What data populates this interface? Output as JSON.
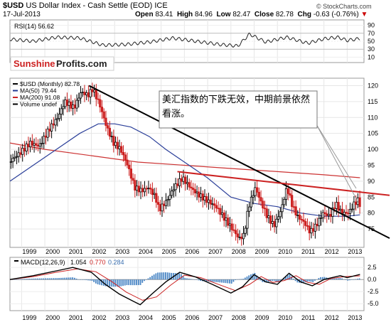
{
  "header": {
    "symbol": "$USD",
    "name": "US Dollar Index - Cash Settle (EOD)",
    "exchange": "ICE",
    "watermark": "© StockCharts.com",
    "date": "17-Jul-2013",
    "open_label": "Open",
    "open": "83.41",
    "high_label": "High",
    "high": "84.96",
    "low_label": "Low",
    "low": "82.47",
    "close_label": "Close",
    "close": "82.78",
    "chg_label": "Chg",
    "chg": "-0.63 (-0.76%)",
    "chg_marker": "▼"
  },
  "logo": {
    "part1": "Sunshine",
    "part2": "Profits.com"
  },
  "rsi_panel": {
    "legend": "RSI(14) 56.62",
    "ticks": [
      "90",
      "70",
      "50",
      "30",
      "10"
    ]
  },
  "price_panel": {
    "legend": [
      {
        "text": "$USD (Monthly) 82.78",
        "color": "#000000"
      },
      {
        "text": "MA(50) 79.44",
        "color": "#1f3a93"
      },
      {
        "text": "MA(200) 91.08",
        "color": "#cc2222"
      },
      {
        "text": "Volume undef",
        "color": "#000000"
      }
    ],
    "y_ticks": [
      "120",
      "115",
      "110",
      "105",
      "100",
      "95",
      "90",
      "85",
      "80",
      "75"
    ],
    "annotation": "美汇指数的下跌无效，中期前景依然看涨。"
  },
  "macd_panel": {
    "legend_label": "MACD(12,26,9)",
    "macd_value": "1.054",
    "signal_value": "0.770",
    "hist_value": "0.284",
    "y_ticks": [
      "2.5",
      "0.0",
      "-2.5",
      "-5.0"
    ]
  },
  "x_axis": {
    "labels": [
      "1999",
      "2000",
      "2001",
      "2002",
      "2003",
      "2004",
      "2005",
      "2006",
      "2007",
      "2008",
      "2009",
      "2010",
      "2011",
      "2012",
      "2013"
    ]
  },
  "chart_data": {
    "type": "candlestick",
    "title": "$USD US Dollar Index - Cash Settle (EOD) ICE",
    "x_range": [
      1998.5,
      2013.6
    ],
    "y_range": [
      71,
      121
    ],
    "price_points": [
      [
        1998.5,
        96
      ],
      [
        1999.0,
        99
      ],
      [
        1999.4,
        102
      ],
      [
        1999.8,
        101
      ],
      [
        2000.2,
        106
      ],
      [
        2000.6,
        110
      ],
      [
        2000.9,
        115
      ],
      [
        2001.3,
        113
      ],
      [
        2001.6,
        118
      ],
      [
        2001.9,
        117
      ],
      [
        2002.1,
        119
      ],
      [
        2002.4,
        114
      ],
      [
        2002.7,
        107
      ],
      [
        2003.0,
        102
      ],
      [
        2003.3,
        100
      ],
      [
        2003.6,
        95
      ],
      [
        2003.9,
        88
      ],
      [
        2004.2,
        87
      ],
      [
        2004.5,
        88
      ],
      [
        2004.8,
        85
      ],
      [
        2004.95,
        81
      ],
      [
        2005.3,
        84
      ],
      [
        2005.6,
        88
      ],
      [
        2005.95,
        91
      ],
      [
        2006.3,
        88
      ],
      [
        2006.6,
        86
      ],
      [
        2007.0,
        84
      ],
      [
        2007.4,
        82
      ],
      [
        2007.8,
        78
      ],
      [
        2008.2,
        74
      ],
      [
        2008.4,
        72
      ],
      [
        2008.6,
        73
      ],
      [
        2008.8,
        82
      ],
      [
        2009.1,
        88
      ],
      [
        2009.3,
        84
      ],
      [
        2009.6,
        79
      ],
      [
        2009.9,
        76
      ],
      [
        2010.2,
        81
      ],
      [
        2010.45,
        88
      ],
      [
        2010.7,
        82
      ],
      [
        2010.9,
        79
      ],
      [
        2011.2,
        77
      ],
      [
        2011.45,
        74
      ],
      [
        2011.7,
        76
      ],
      [
        2012.0,
        80
      ],
      [
        2012.3,
        79
      ],
      [
        2012.55,
        83
      ],
      [
        2012.8,
        80
      ],
      [
        2013.1,
        80
      ],
      [
        2013.35,
        83
      ],
      [
        2013.5,
        84
      ],
      [
        2013.55,
        82.78
      ]
    ],
    "ma50_points": [
      [
        1998.5,
        90
      ],
      [
        1999.5,
        95
      ],
      [
        2000.5,
        100
      ],
      [
        2001.5,
        105
      ],
      [
        2002.3,
        108
      ],
      [
        2003.0,
        108
      ],
      [
        2003.7,
        107
      ],
      [
        2004.5,
        104
      ],
      [
        2005.2,
        100
      ],
      [
        2006.0,
        96
      ],
      [
        2007.0,
        91
      ],
      [
        2008.0,
        85
      ],
      [
        2009.0,
        83
      ],
      [
        2010.0,
        82
      ],
      [
        2011.0,
        80
      ],
      [
        2012.0,
        79
      ],
      [
        2013.0,
        79
      ],
      [
        2013.55,
        79.44
      ]
    ],
    "ma200_points": [
      [
        1998.5,
        102
      ],
      [
        2000.0,
        100
      ],
      [
        2002.0,
        98
      ],
      [
        2004.0,
        96
      ],
      [
        2006.0,
        95
      ],
      [
        2008.0,
        94
      ],
      [
        2010.0,
        93
      ],
      [
        2012.0,
        92
      ],
      [
        2013.55,
        91.08
      ]
    ],
    "resistance_lines": [
      {
        "from": [
          2001.9,
          120
        ],
        "to": [
          2013.6,
          77
        ],
        "color": "#000000"
      },
      {
        "from": [
          2005.7,
          93
        ],
        "to": [
          2013.6,
          86
        ],
        "color": "#cc2222"
      }
    ],
    "rsi_points": [
      [
        1998.5,
        55
      ],
      [
        1999.5,
        50
      ],
      [
        2000.5,
        60
      ],
      [
        2001.5,
        58
      ],
      [
        2002.5,
        40
      ],
      [
        2003.5,
        42
      ],
      [
        2004.5,
        48
      ],
      [
        2005.5,
        58
      ],
      [
        2006.5,
        50
      ],
      [
        2007.5,
        42
      ],
      [
        2008.3,
        38
      ],
      [
        2008.8,
        68
      ],
      [
        2009.5,
        48
      ],
      [
        2010.4,
        60
      ],
      [
        2011.3,
        45
      ],
      [
        2012.0,
        56
      ],
      [
        2012.6,
        60
      ],
      [
        2013.0,
        52
      ],
      [
        2013.55,
        56.62
      ]
    ],
    "macd_points": [
      [
        1998.5,
        0
      ],
      [
        1999.5,
        0.8
      ],
      [
        2000.5,
        1.8
      ],
      [
        2001.2,
        2.5
      ],
      [
        2002.0,
        1.5
      ],
      [
        2002.6,
        -1
      ],
      [
        2003.2,
        -3
      ],
      [
        2003.8,
        -4.5
      ],
      [
        2004.1,
        -5.2
      ],
      [
        2004.6,
        -3
      ],
      [
        2005.2,
        -0.5
      ],
      [
        2005.8,
        1.5
      ],
      [
        2006.5,
        0.5
      ],
      [
        2007.2,
        -1
      ],
      [
        2008.0,
        -2.8
      ],
      [
        2008.5,
        -1.5
      ],
      [
        2009.0,
        1
      ],
      [
        2009.5,
        -0.5
      ],
      [
        2010.0,
        -1
      ],
      [
        2010.5,
        1.3
      ],
      [
        2011.0,
        -0.5
      ],
      [
        2011.5,
        -1.3
      ],
      [
        2012.0,
        0
      ],
      [
        2012.7,
        0.8
      ],
      [
        2013.0,
        0.4
      ],
      [
        2013.55,
        1.054
      ]
    ],
    "signal_points": [
      [
        1998.5,
        0
      ],
      [
        1999.5,
        0.6
      ],
      [
        2000.5,
        1.5
      ],
      [
        2001.4,
        2.2
      ],
      [
        2002.2,
        1.6
      ],
      [
        2002.9,
        -0.5
      ],
      [
        2003.5,
        -2.6
      ],
      [
        2004.2,
        -4.3
      ],
      [
        2004.8,
        -3.6
      ],
      [
        2005.4,
        -1.2
      ],
      [
        2006.0,
        0.9
      ],
      [
        2006.7,
        0.4
      ],
      [
        2007.4,
        -0.9
      ],
      [
        2008.2,
        -2.3
      ],
      [
        2008.8,
        -1
      ],
      [
        2009.3,
        0.6
      ],
      [
        2009.8,
        -0.6
      ],
      [
        2010.3,
        -0.2
      ],
      [
        2010.8,
        0.8
      ],
      [
        2011.3,
        -0.6
      ],
      [
        2011.8,
        -1
      ],
      [
        2012.3,
        0.2
      ],
      [
        2012.9,
        0.6
      ],
      [
        2013.55,
        0.77
      ]
    ]
  }
}
